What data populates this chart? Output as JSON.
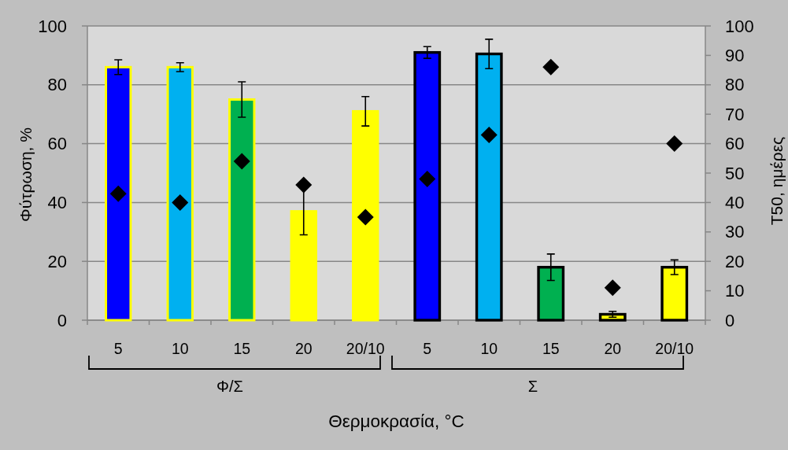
{
  "chart_data": {
    "type": "bar",
    "categories": [
      "5",
      "10",
      "15",
      "20",
      "20/10",
      "5",
      "10",
      "15",
      "20",
      "20/10"
    ],
    "series": [
      {
        "colors": [
          "#0000ff",
          "#00b0f0",
          "#00b050",
          "#ffff00",
          "#ffff00",
          "#0000ff",
          "#00b0f0",
          "#00b050",
          "#ffff00",
          "#ffff00"
        ],
        "values": [
          86,
          86,
          75,
          37,
          71,
          91,
          90.5,
          18,
          2,
          18
        ],
        "errors": [
          2.5,
          1.5,
          6,
          8,
          5,
          2,
          5,
          4.5,
          1,
          2.5
        ]
      },
      {
        "type": "scatter",
        "color": "#000000",
        "axis": "y2",
        "marker": "diamond",
        "values": [
          43,
          40,
          54,
          46,
          35,
          48,
          63,
          86,
          11,
          60
        ]
      }
    ],
    "ylim": [
      0,
      100
    ],
    "yticks": [
      0,
      20,
      40,
      60,
      80,
      100
    ],
    "y2lim": [
      0,
      100
    ],
    "y2ticks": [
      0,
      10,
      20,
      30,
      40,
      50,
      60,
      70,
      80,
      90,
      100
    ],
    "ylabel": "Φύτρωση, %",
    "y2label": "T50, ημέρες",
    "xlabel": "Θερμοκρασία, °C",
    "grid": "y",
    "annotations": [
      "Φ/Σ",
      "Σ"
    ]
  }
}
